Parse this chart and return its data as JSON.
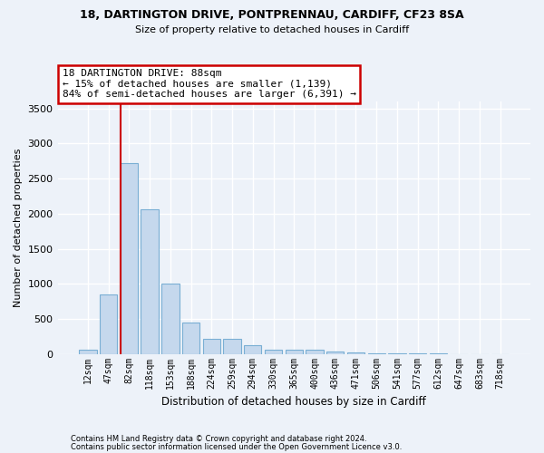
{
  "title1": "18, DARTINGTON DRIVE, PONTPRENNAU, CARDIFF, CF23 8SA",
  "title2": "Size of property relative to detached houses in Cardiff",
  "xlabel": "Distribution of detached houses by size in Cardiff",
  "ylabel": "Number of detached properties",
  "footnote1": "Contains HM Land Registry data © Crown copyright and database right 2024.",
  "footnote2": "Contains public sector information licensed under the Open Government Licence v3.0.",
  "categories": [
    "12sqm",
    "47sqm",
    "82sqm",
    "118sqm",
    "153sqm",
    "188sqm",
    "224sqm",
    "259sqm",
    "294sqm",
    "330sqm",
    "365sqm",
    "400sqm",
    "436sqm",
    "471sqm",
    "506sqm",
    "541sqm",
    "577sqm",
    "612sqm",
    "647sqm",
    "683sqm",
    "718sqm"
  ],
  "values": [
    60,
    850,
    2720,
    2060,
    1000,
    450,
    215,
    215,
    130,
    60,
    55,
    55,
    30,
    25,
    10,
    5,
    3,
    2,
    1,
    1,
    0
  ],
  "bar_color": "#c5d8ed",
  "bar_edge_color": "#7aafd4",
  "background_color": "#edf2f9",
  "grid_color": "#ffffff",
  "marker_bar_index": 2,
  "annotation_line1": "18 DARTINGTON DRIVE: 88sqm",
  "annotation_line2": "← 15% of detached houses are smaller (1,139)",
  "annotation_line3": "84% of semi-detached houses are larger (6,391) →",
  "annotation_box_facecolor": "#ffffff",
  "annotation_box_edgecolor": "#cc0000",
  "ylim": [
    0,
    3600
  ],
  "yticks": [
    0,
    500,
    1000,
    1500,
    2000,
    2500,
    3000,
    3500
  ]
}
